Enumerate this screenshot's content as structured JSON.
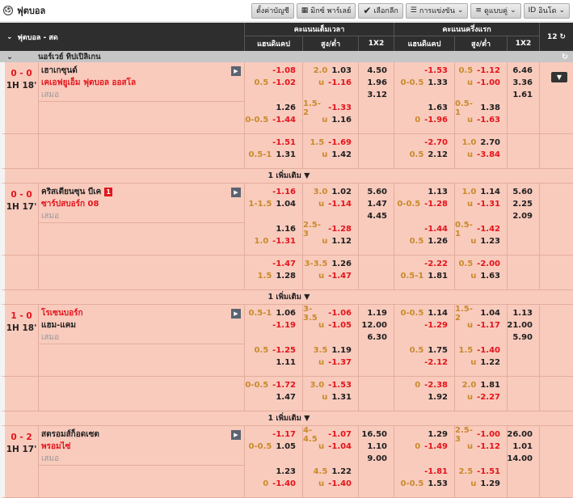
{
  "topbar": {
    "title": "ฟุตบอล",
    "buttons": [
      "ตั้งค่าบัญชี",
      "มิกซ์ พาร์เลย์",
      "เลือกลีก",
      "การแข่งขัน",
      "ดูแบบคู่",
      "อินโด"
    ]
  },
  "header": {
    "sport": "ฟุตบอล - สด",
    "full_time": "คะแนนเต็มเวลา",
    "first_half": "คะแนนครึ่งแรก",
    "handicap": "แฮนดิแคป",
    "over_under": "สูง/ต่ำ",
    "x12": "1X2",
    "count": "12"
  },
  "league": "นอร์เวย์ ทิปเปิลิเกน",
  "more_label": "1 เพิ่มเติม ▼",
  "colors": {
    "negative": "#e4141b",
    "line": "#c98a2b",
    "row_bg": "#f9cbbd",
    "header_bg": "#2e2e2e"
  },
  "matches": [
    {
      "score": "0 - 0",
      "time": "1H 18'",
      "home": "เฮาเกซุนด์",
      "away": "เคเอฟยูเอ็ม ฟุตบอล ออสโล",
      "draw": "เสมอ",
      "fav": "away",
      "red_card": "",
      "rows": [
        {
          "ft_hdp": [
            [
              "",
              "-1.08"
            ],
            [
              "0.5",
              "-1.02"
            ]
          ],
          "ft_ou": [
            [
              "2.0",
              "1.03"
            ],
            [
              "u",
              "-1.16"
            ]
          ],
          "ft_1x2": [
            "4.50",
            "1.96",
            "3.12"
          ],
          "ht_hdp": [
            [
              "",
              "-1.53"
            ],
            [
              "0-0.5",
              "1.33"
            ]
          ],
          "ht_ou": [
            [
              "0.5",
              "-1.12"
            ],
            [
              "u",
              "-1.00"
            ]
          ],
          "ht_1x2": [
            "6.46",
            "3.36",
            "1.61"
          ]
        },
        {
          "ft_hdp": [
            [
              "",
              "1.26"
            ],
            [
              "0-0.5",
              "-1.44"
            ]
          ],
          "ft_ou": [
            [
              "1.5-2",
              "-1.33"
            ],
            [
              "u",
              "1.16"
            ]
          ],
          "ft_1x2": [],
          "ht_hdp": [
            [
              "",
              "1.63"
            ],
            [
              "0",
              "-1.96"
            ]
          ],
          "ht_ou": [
            [
              "0.5-1",
              "1.38"
            ],
            [
              "u",
              "-1.63"
            ]
          ],
          "ht_1x2": []
        },
        {
          "ft_hdp": [
            [
              "",
              "-1.51"
            ],
            [
              "0.5-1",
              "1.31"
            ]
          ],
          "ft_ou": [
            [
              "1.5",
              "-1.69"
            ],
            [
              "u",
              "1.42"
            ]
          ],
          "ft_1x2": [],
          "ht_hdp": [
            [
              "",
              "-2.70"
            ],
            [
              "0.5",
              "2.12"
            ]
          ],
          "ht_ou": [
            [
              "1.0",
              "2.70"
            ],
            [
              "u",
              "-3.84"
            ]
          ],
          "ht_1x2": []
        }
      ]
    },
    {
      "score": "0 - 0",
      "time": "1H 17'",
      "home": "คริสเตียนซุน บีเค",
      "away": "ซาร์ปสบอร์ก 08",
      "draw": "เสมอ",
      "fav": "away",
      "red_card": "1",
      "rows": [
        {
          "ft_hdp": [
            [
              "",
              "-1.16"
            ],
            [
              "1-1.5",
              "1.04"
            ]
          ],
          "ft_ou": [
            [
              "3.0",
              "1.02"
            ],
            [
              "u",
              "-1.14"
            ]
          ],
          "ft_1x2": [
            "5.60",
            "1.47",
            "4.45"
          ],
          "ht_hdp": [
            [
              "",
              "1.13"
            ],
            [
              "0-0.5",
              "-1.28"
            ]
          ],
          "ht_ou": [
            [
              "1.0",
              "1.14"
            ],
            [
              "u",
              "-1.31"
            ]
          ],
          "ht_1x2": [
            "5.60",
            "2.25",
            "2.09"
          ]
        },
        {
          "ft_hdp": [
            [
              "",
              "1.16"
            ],
            [
              "1.0",
              "-1.31"
            ]
          ],
          "ft_ou": [
            [
              "2.5-3",
              "-1.28"
            ],
            [
              "u",
              "1.12"
            ]
          ],
          "ft_1x2": [],
          "ht_hdp": [
            [
              "",
              "-1.44"
            ],
            [
              "0.5",
              "1.26"
            ]
          ],
          "ht_ou": [
            [
              "0.5-1",
              "-1.42"
            ],
            [
              "u",
              "1.23"
            ]
          ],
          "ht_1x2": []
        },
        {
          "ft_hdp": [
            [
              "",
              "-1.47"
            ],
            [
              "1.5",
              "1.28"
            ]
          ],
          "ft_ou": [
            [
              "3-3.5",
              "1.26"
            ],
            [
              "u",
              "-1.47"
            ]
          ],
          "ft_1x2": [],
          "ht_hdp": [
            [
              "",
              "-2.22"
            ],
            [
              "0.5-1",
              "1.81"
            ]
          ],
          "ht_ou": [
            [
              "0.5",
              "-2.00"
            ],
            [
              "u",
              "1.63"
            ]
          ],
          "ht_1x2": []
        }
      ]
    },
    {
      "score": "1 - 0",
      "time": "1H 18'",
      "home": "โรเซนบอร์ก",
      "away": "แฮม-แคม",
      "draw": "เสมอ",
      "fav": "home",
      "red_card": "",
      "rows": [
        {
          "ft_hdp": [
            [
              "0.5-1",
              "1.06"
            ],
            [
              "",
              "-1.19"
            ]
          ],
          "ft_ou": [
            [
              "3-3.5",
              "-1.06"
            ],
            [
              "u",
              "-1.05"
            ]
          ],
          "ft_1x2": [
            "1.19",
            "12.00",
            "6.30"
          ],
          "ht_hdp": [
            [
              "0-0.5",
              "1.14"
            ],
            [
              "",
              "-1.29"
            ]
          ],
          "ht_ou": [
            [
              "1.5-2",
              "1.04"
            ],
            [
              "u",
              "-1.17"
            ]
          ],
          "ht_1x2": [
            "1.13",
            "21.00",
            "5.90"
          ]
        },
        {
          "ft_hdp": [
            [
              "0.5",
              "-1.25"
            ],
            [
              "",
              "1.11"
            ]
          ],
          "ft_ou": [
            [
              "3.5",
              "1.19"
            ],
            [
              "u",
              "-1.37"
            ]
          ],
          "ft_1x2": [],
          "ht_hdp": [
            [
              "0.5",
              "1.75"
            ],
            [
              "",
              "-2.12"
            ]
          ],
          "ht_ou": [
            [
              "1.5",
              "-1.40"
            ],
            [
              "u",
              "1.22"
            ]
          ],
          "ht_1x2": []
        },
        {
          "ft_hdp": [
            [
              "0-0.5",
              "-1.72"
            ],
            [
              "",
              "1.47"
            ]
          ],
          "ft_ou": [
            [
              "3.0",
              "-1.53"
            ],
            [
              "u",
              "1.31"
            ]
          ],
          "ft_1x2": [],
          "ht_hdp": [
            [
              "0",
              "-2.38"
            ],
            [
              "",
              "1.92"
            ]
          ],
          "ht_ou": [
            [
              "2.0",
              "1.81"
            ],
            [
              "u",
              "-2.27"
            ]
          ],
          "ht_1x2": []
        }
      ]
    },
    {
      "score": "0 - 2",
      "time": "1H 17'",
      "home": "สตรอมส์ก็อดเซต",
      "away": "พรอมไซ่",
      "draw": "เสมอ",
      "fav": "away",
      "red_card": "",
      "rows": [
        {
          "ft_hdp": [
            [
              "",
              "-1.17"
            ],
            [
              "0-0.5",
              "1.05"
            ]
          ],
          "ft_ou": [
            [
              "4-4.5",
              "-1.07"
            ],
            [
              "u",
              "-1.04"
            ]
          ],
          "ft_1x2": [
            "16.50",
            "1.10",
            "9.00"
          ],
          "ht_hdp": [
            [
              "",
              "1.29"
            ],
            [
              "0",
              "-1.49"
            ]
          ],
          "ht_ou": [
            [
              "2.5-3",
              "-1.00"
            ],
            [
              "u",
              "-1.12"
            ]
          ],
          "ht_1x2": [
            "26.00",
            "1.01",
            "14.00"
          ]
        },
        {
          "ft_hdp": [
            [
              "",
              "1.23"
            ],
            [
              "0",
              "-1.40"
            ]
          ],
          "ft_ou": [
            [
              "4.5",
              "1.22"
            ],
            [
              "u",
              "-1.40"
            ]
          ],
          "ft_1x2": [],
          "ht_hdp": [
            [
              "",
              "-1.81"
            ],
            [
              "0-0.5",
              "1.53"
            ]
          ],
          "ht_ou": [
            [
              "2.5",
              "-1.51"
            ],
            [
              "u",
              "1.29"
            ]
          ],
          "ht_1x2": []
        }
      ]
    }
  ]
}
